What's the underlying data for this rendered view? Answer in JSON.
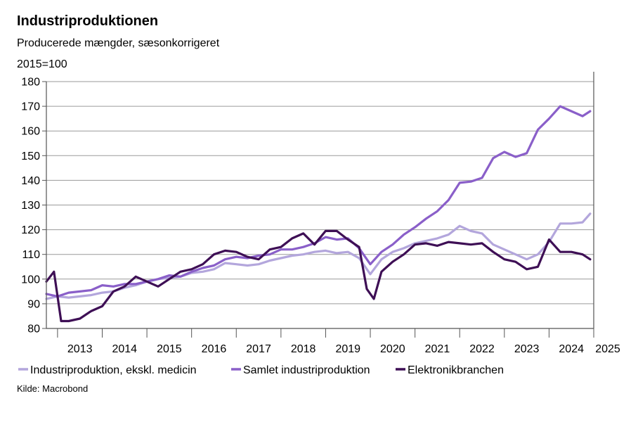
{
  "header": {
    "title": "Industriproduktionen",
    "subtitle": "Producerede mængder, sæsonkorrigeret",
    "unit": "2015=100"
  },
  "source": "Kilde: Macrobond",
  "colors": {
    "excl_medicine": "#b3a6dc",
    "total": "#8a5fc9",
    "electronics": "#3e0f55",
    "grid": "#9a9a9a",
    "axis": "#555555"
  },
  "chart_data": {
    "type": "line",
    "ylim": [
      80,
      180
    ],
    "yticks": [
      80,
      90,
      100,
      110,
      120,
      130,
      140,
      150,
      160,
      170,
      180
    ],
    "xlim": [
      2012.75,
      2025.0
    ],
    "xticks": [
      "2013",
      "2014",
      "2015",
      "2016",
      "2017",
      "2018",
      "2019",
      "2020",
      "2021",
      "2022",
      "2023",
      "2024",
      "2025"
    ],
    "grid": true,
    "legend_position": "bottom",
    "series": [
      {
        "name": "Industriproduktion, ekskl. medicin",
        "color": "#b3a6dc",
        "x": [
          2012.75,
          2013.0,
          2013.25,
          2013.5,
          2013.75,
          2014.0,
          2014.25,
          2014.5,
          2014.75,
          2015.0,
          2015.25,
          2015.5,
          2015.75,
          2016.0,
          2016.25,
          2016.5,
          2016.75,
          2017.0,
          2017.25,
          2017.5,
          2017.75,
          2018.0,
          2018.25,
          2018.5,
          2018.75,
          2019.0,
          2019.25,
          2019.5,
          2019.75,
          2020.0,
          2020.25,
          2020.5,
          2020.75,
          2021.0,
          2021.25,
          2021.5,
          2021.75,
          2022.0,
          2022.25,
          2022.5,
          2022.75,
          2023.0,
          2023.25,
          2023.5,
          2023.75,
          2024.0,
          2024.25,
          2024.5,
          2024.75,
          2024.92
        ],
        "values": [
          92,
          93,
          92.5,
          93,
          93.5,
          94.5,
          95,
          96.5,
          97.5,
          99,
          100,
          100.5,
          101,
          102.5,
          103,
          104,
          106.5,
          106,
          105.5,
          106,
          107.5,
          108.5,
          109.5,
          110,
          111,
          111.5,
          110.5,
          111,
          108.5,
          102,
          108,
          111,
          112.5,
          114.5,
          115.5,
          116.5,
          118,
          121.5,
          119.5,
          118.5,
          114,
          112,
          110,
          108,
          110,
          115,
          122.5,
          122.5,
          123,
          126.5
        ]
      },
      {
        "name": "Samlet industriproduktion",
        "color": "#8a5fc9",
        "x": [
          2012.75,
          2013.0,
          2013.25,
          2013.5,
          2013.75,
          2014.0,
          2014.25,
          2014.5,
          2014.75,
          2015.0,
          2015.25,
          2015.5,
          2015.75,
          2016.0,
          2016.25,
          2016.5,
          2016.75,
          2017.0,
          2017.25,
          2017.5,
          2017.75,
          2018.0,
          2018.25,
          2018.5,
          2018.75,
          2019.0,
          2019.25,
          2019.5,
          2019.75,
          2020.0,
          2020.25,
          2020.5,
          2020.75,
          2021.0,
          2021.25,
          2021.5,
          2021.75,
          2022.0,
          2022.25,
          2022.5,
          2022.75,
          2023.0,
          2023.25,
          2023.5,
          2023.75,
          2024.0,
          2024.25,
          2024.5,
          2024.75,
          2024.92
        ],
        "values": [
          94,
          93,
          94.5,
          95,
          95.5,
          97.5,
          97,
          98,
          98,
          99,
          100,
          101.5,
          101,
          103,
          104.5,
          105.5,
          108,
          109,
          108.5,
          109.5,
          110,
          112,
          112,
          113,
          114.5,
          117,
          116,
          116.5,
          112.5,
          106,
          111,
          114,
          118,
          121,
          124.5,
          127.5,
          132,
          139,
          139.5,
          141,
          149,
          151.5,
          149.5,
          151,
          160.5,
          165,
          170,
          168,
          166,
          168
        ]
      },
      {
        "name": "Elektronikbranchen",
        "color": "#3e0f55",
        "x": [
          2012.75,
          2012.92,
          2013.08,
          2013.25,
          2013.5,
          2013.75,
          2014.0,
          2014.25,
          2014.5,
          2014.75,
          2015.0,
          2015.25,
          2015.5,
          2015.75,
          2016.0,
          2016.25,
          2016.5,
          2016.75,
          2017.0,
          2017.25,
          2017.5,
          2017.75,
          2018.0,
          2018.25,
          2018.5,
          2018.75,
          2019.0,
          2019.25,
          2019.5,
          2019.75,
          2019.92,
          2020.08,
          2020.25,
          2020.5,
          2020.75,
          2021.0,
          2021.25,
          2021.5,
          2021.75,
          2022.0,
          2022.25,
          2022.5,
          2022.75,
          2023.0,
          2023.25,
          2023.5,
          2023.75,
          2024.0,
          2024.25,
          2024.5,
          2024.75,
          2024.92
        ],
        "values": [
          99,
          103,
          83,
          83,
          84,
          87,
          89,
          95,
          97,
          101,
          99,
          97,
          100,
          103,
          104,
          106,
          110,
          111.5,
          111,
          109,
          108,
          112,
          113,
          116.5,
          118.5,
          114,
          119.5,
          119.5,
          116,
          113,
          96,
          92,
          103,
          107,
          110,
          114,
          114.5,
          113.5,
          115,
          114.5,
          114,
          114.5,
          111,
          108,
          107,
          104,
          105,
          116,
          111,
          111,
          110,
          108
        ]
      }
    ]
  }
}
